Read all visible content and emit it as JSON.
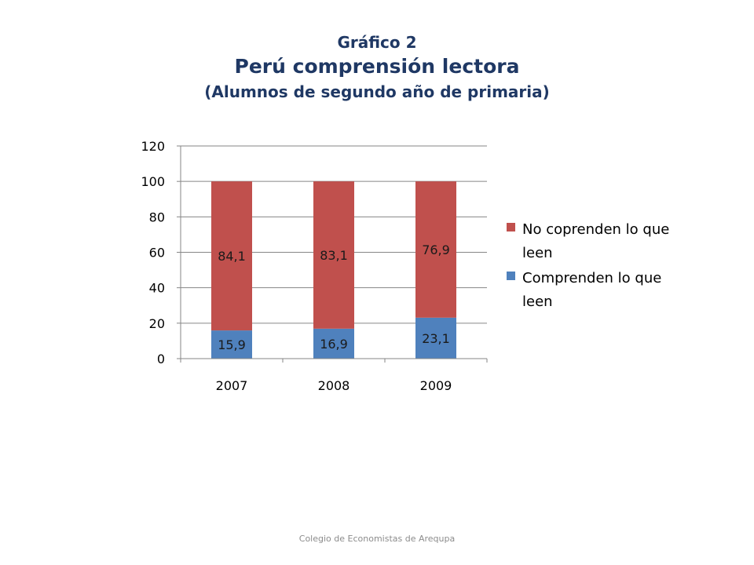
{
  "slide": {
    "title_line1": "Gráfico 2",
    "title_line2": "Perú comprensión lectora",
    "title_line3": "(Alumnos de segundo año de primaria)",
    "footer": "Colegio de Economistas de Arequpa"
  },
  "chart_data": {
    "type": "bar",
    "stacked": true,
    "categories": [
      "2007",
      "2008",
      "2009"
    ],
    "series": [
      {
        "name": "Comprenden lo que leen",
        "values": [
          15.9,
          16.9,
          23.1
        ],
        "labels": [
          "15,9",
          "16,9",
          "23,1"
        ],
        "color": "#4f81bd"
      },
      {
        "name": "No coprenden lo que leen",
        "values": [
          84.1,
          83.1,
          76.9
        ],
        "labels": [
          "84,1",
          "83,1",
          "76,9"
        ],
        "color": "#c0504d"
      }
    ],
    "ylim": [
      0,
      120
    ],
    "yticks": [
      "0",
      "20",
      "40",
      "60",
      "80",
      "100",
      "120"
    ],
    "grid": true,
    "legend_position": "right",
    "legend": [
      {
        "lines": [
          "No coprenden lo que",
          "leen"
        ],
        "color": "#c0504d"
      },
      {
        "lines": [
          "Comprenden lo que",
          "leen"
        ],
        "color": "#4f81bd"
      }
    ]
  }
}
